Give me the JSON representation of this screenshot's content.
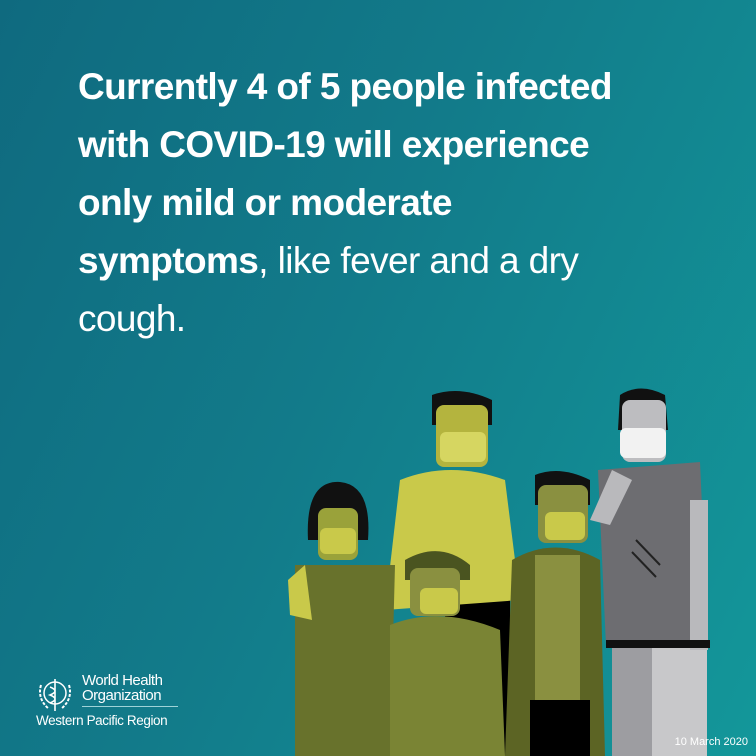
{
  "headline": {
    "bold": "Currently 4 of 5 people infected with COVID-19 will experience only mild or moderate symptoms",
    "regular": ", like fever and a dry cough."
  },
  "logo": {
    "line1": "World Health",
    "line2": "Organization",
    "region": "Western Pacific Region",
    "icon": "who-emblem-icon"
  },
  "date": "10 March 2020",
  "colors": {
    "background": "#127b8a",
    "text": "#ffffff",
    "yellow": "#c9c94a",
    "olive": "#7a8434",
    "gray": "#6e6e72"
  }
}
